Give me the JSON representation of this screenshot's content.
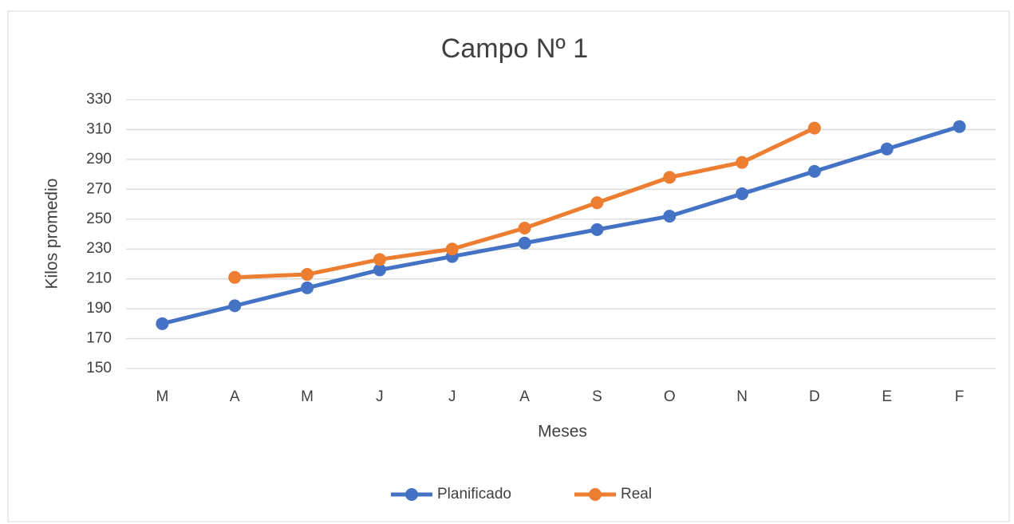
{
  "chart_data": {
    "type": "line",
    "title": "Campo Nº 1",
    "x_label": "Meses",
    "y_label": "Kilos promedio",
    "categories": [
      "M",
      "A",
      "M",
      "J",
      "J",
      "A",
      "S",
      "O",
      "N",
      "D",
      "E",
      "F"
    ],
    "series": [
      {
        "name": "Planificado",
        "color": "#4472c4",
        "values": [
          180,
          192,
          204,
          216,
          225,
          234,
          243,
          252,
          267,
          282,
          297,
          312
        ]
      },
      {
        "name": "Real",
        "color": "#ed7d31",
        "values": [
          null,
          211,
          213,
          223,
          230,
          244,
          261,
          278,
          288,
          311,
          null,
          null
        ]
      }
    ],
    "ylim": [
      150,
      330
    ],
    "yticks": [
      150,
      170,
      190,
      210,
      230,
      250,
      270,
      290,
      310,
      330
    ],
    "grid": true,
    "legend": "bottom"
  }
}
